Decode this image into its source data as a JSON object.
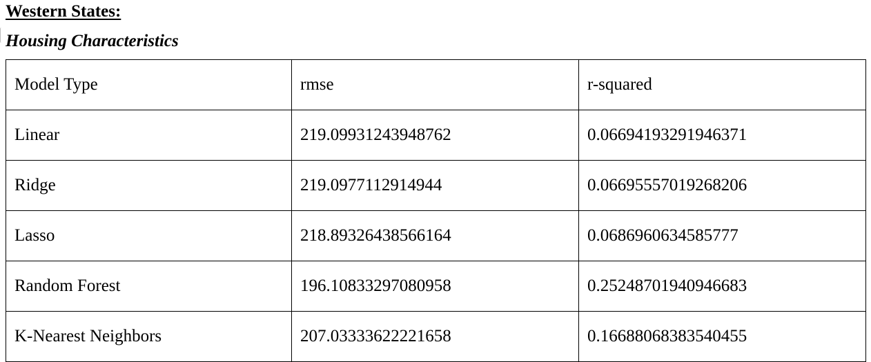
{
  "section_title": "Western States:",
  "subtitle": "Housing Characteristics",
  "table": {
    "headers": [
      "Model Type",
      "rmse",
      "r-squared"
    ],
    "rows": [
      [
        "Linear",
        "219.09931243948762",
        "0.06694193291946371"
      ],
      [
        "Ridge",
        "219.0977112914944",
        "0.06695557019268206"
      ],
      [
        "Lasso",
        "218.89326438566164",
        "0.0686960634585777"
      ],
      [
        "Random Forest",
        "196.10833297080958",
        "0.25248701940946683"
      ],
      [
        "K-Nearest Neighbors",
        "207.03333622221658",
        "0.16688068383540455"
      ]
    ]
  }
}
